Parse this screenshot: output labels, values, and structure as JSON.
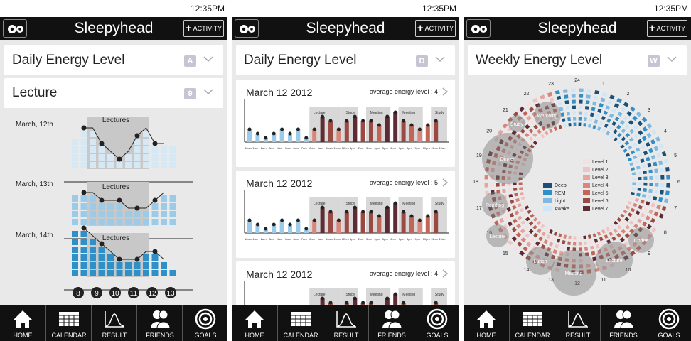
{
  "status": {
    "time": "12:35PM"
  },
  "app": {
    "title": "Sleepyhead",
    "activity_label": "ACTIVITY"
  },
  "tabs": [
    {
      "label": "HOME",
      "icon": "home-icon"
    },
    {
      "label": "CALENDAR",
      "icon": "calendar-icon"
    },
    {
      "label": "RESULT",
      "icon": "bell-curve-icon"
    },
    {
      "label": "FRIENDS",
      "icon": "friends-icon"
    },
    {
      "label": "GOALS",
      "icon": "target-icon"
    }
  ],
  "colors": {
    "lecture_band": "#c8c8c8",
    "energy_light": "#d7e8f5",
    "energy_mid": "#9ccbea",
    "energy_dark": "#2f8fc7",
    "sleep_deep": "#1b4f78",
    "sleep_rem": "#2f8fc7",
    "sleep_light": "#7fb9e0",
    "sleep_awake": "#cfe6f6",
    "level_1": "#f7dfe0",
    "level_2": "#f0c4c4",
    "level_3": "#e6a4a0",
    "level_4": "#d9857c",
    "level_5": "#c26556",
    "level_6": "#9a4a42",
    "level_7": "#5e2a33"
  },
  "screen1": {
    "selector1": {
      "label": "Daily Energy Level",
      "badge": "A"
    },
    "selector2": {
      "label": "Lecture",
      "badge": "9"
    },
    "days": [
      {
        "date": "March, 12th",
        "band_label": "Lectures",
        "columns": [
          4,
          5,
          5,
          3,
          2,
          1,
          2,
          4,
          5,
          3,
          3,
          3
        ]
      },
      {
        "date": "March, 13th",
        "band_label": "Lectures",
        "columns": [
          4,
          4,
          4,
          3,
          3,
          3,
          2,
          2,
          2,
          3,
          4,
          4
        ]
      },
      {
        "date": "March, 14th",
        "band_label": "Lectures",
        "columns": [
          6,
          6,
          5,
          4,
          3,
          2,
          2,
          2,
          3,
          3,
          2,
          1
        ]
      }
    ],
    "hours": [
      "8",
      "9",
      "10",
      "11",
      "12",
      "13"
    ]
  },
  "screen2": {
    "selector": {
      "label": "Daily Energy Level",
      "badge": "D"
    },
    "cards": [
      {
        "date": "March 12 2012",
        "avg_label": "average energy level : 4"
      },
      {
        "date": "March 12 2012",
        "avg_label": "average energy level : 5"
      },
      {
        "date": "March 12 2012",
        "avg_label": "average energy level : 4"
      }
    ],
    "band_labels": [
      "Lecture",
      "Study",
      "Meeting",
      "Meeting",
      "Study"
    ],
    "xticks": [
      "12am",
      "1am",
      "2am",
      "3am",
      "4am",
      "5am",
      "6am",
      "7am",
      "8am",
      "9am",
      "10am",
      "11am",
      "12pm",
      "1pm",
      "2pm",
      "3pm",
      "4pm",
      "5pm",
      "6pm",
      "7pm",
      "8pm",
      "9pm",
      "10pm",
      "11pm",
      "12am"
    ]
  },
  "screen3": {
    "selector": {
      "label": "Weekly Energy Level",
      "badge": "W"
    },
    "hour_labels": [
      "24",
      "1",
      "2",
      "3",
      "4",
      "5",
      "6",
      "7",
      "8",
      "9",
      "10",
      "11",
      "12",
      "13",
      "14",
      "15",
      "16",
      "17",
      "18",
      "19",
      "20",
      "21",
      "22",
      "23"
    ],
    "activities": [
      "Watching",
      "Study",
      "Dinner",
      "Reading",
      "Lecture",
      "Lunch",
      "Meeting",
      "Lecture",
      "Coffee"
    ],
    "sleep_legend": [
      "Deep",
      "REM",
      "Light",
      "Awake"
    ],
    "level_legend": [
      "Level 1",
      "Level 2",
      "Level 3",
      "Level 4",
      "Level 5",
      "Level 6",
      "Level 7"
    ]
  }
}
